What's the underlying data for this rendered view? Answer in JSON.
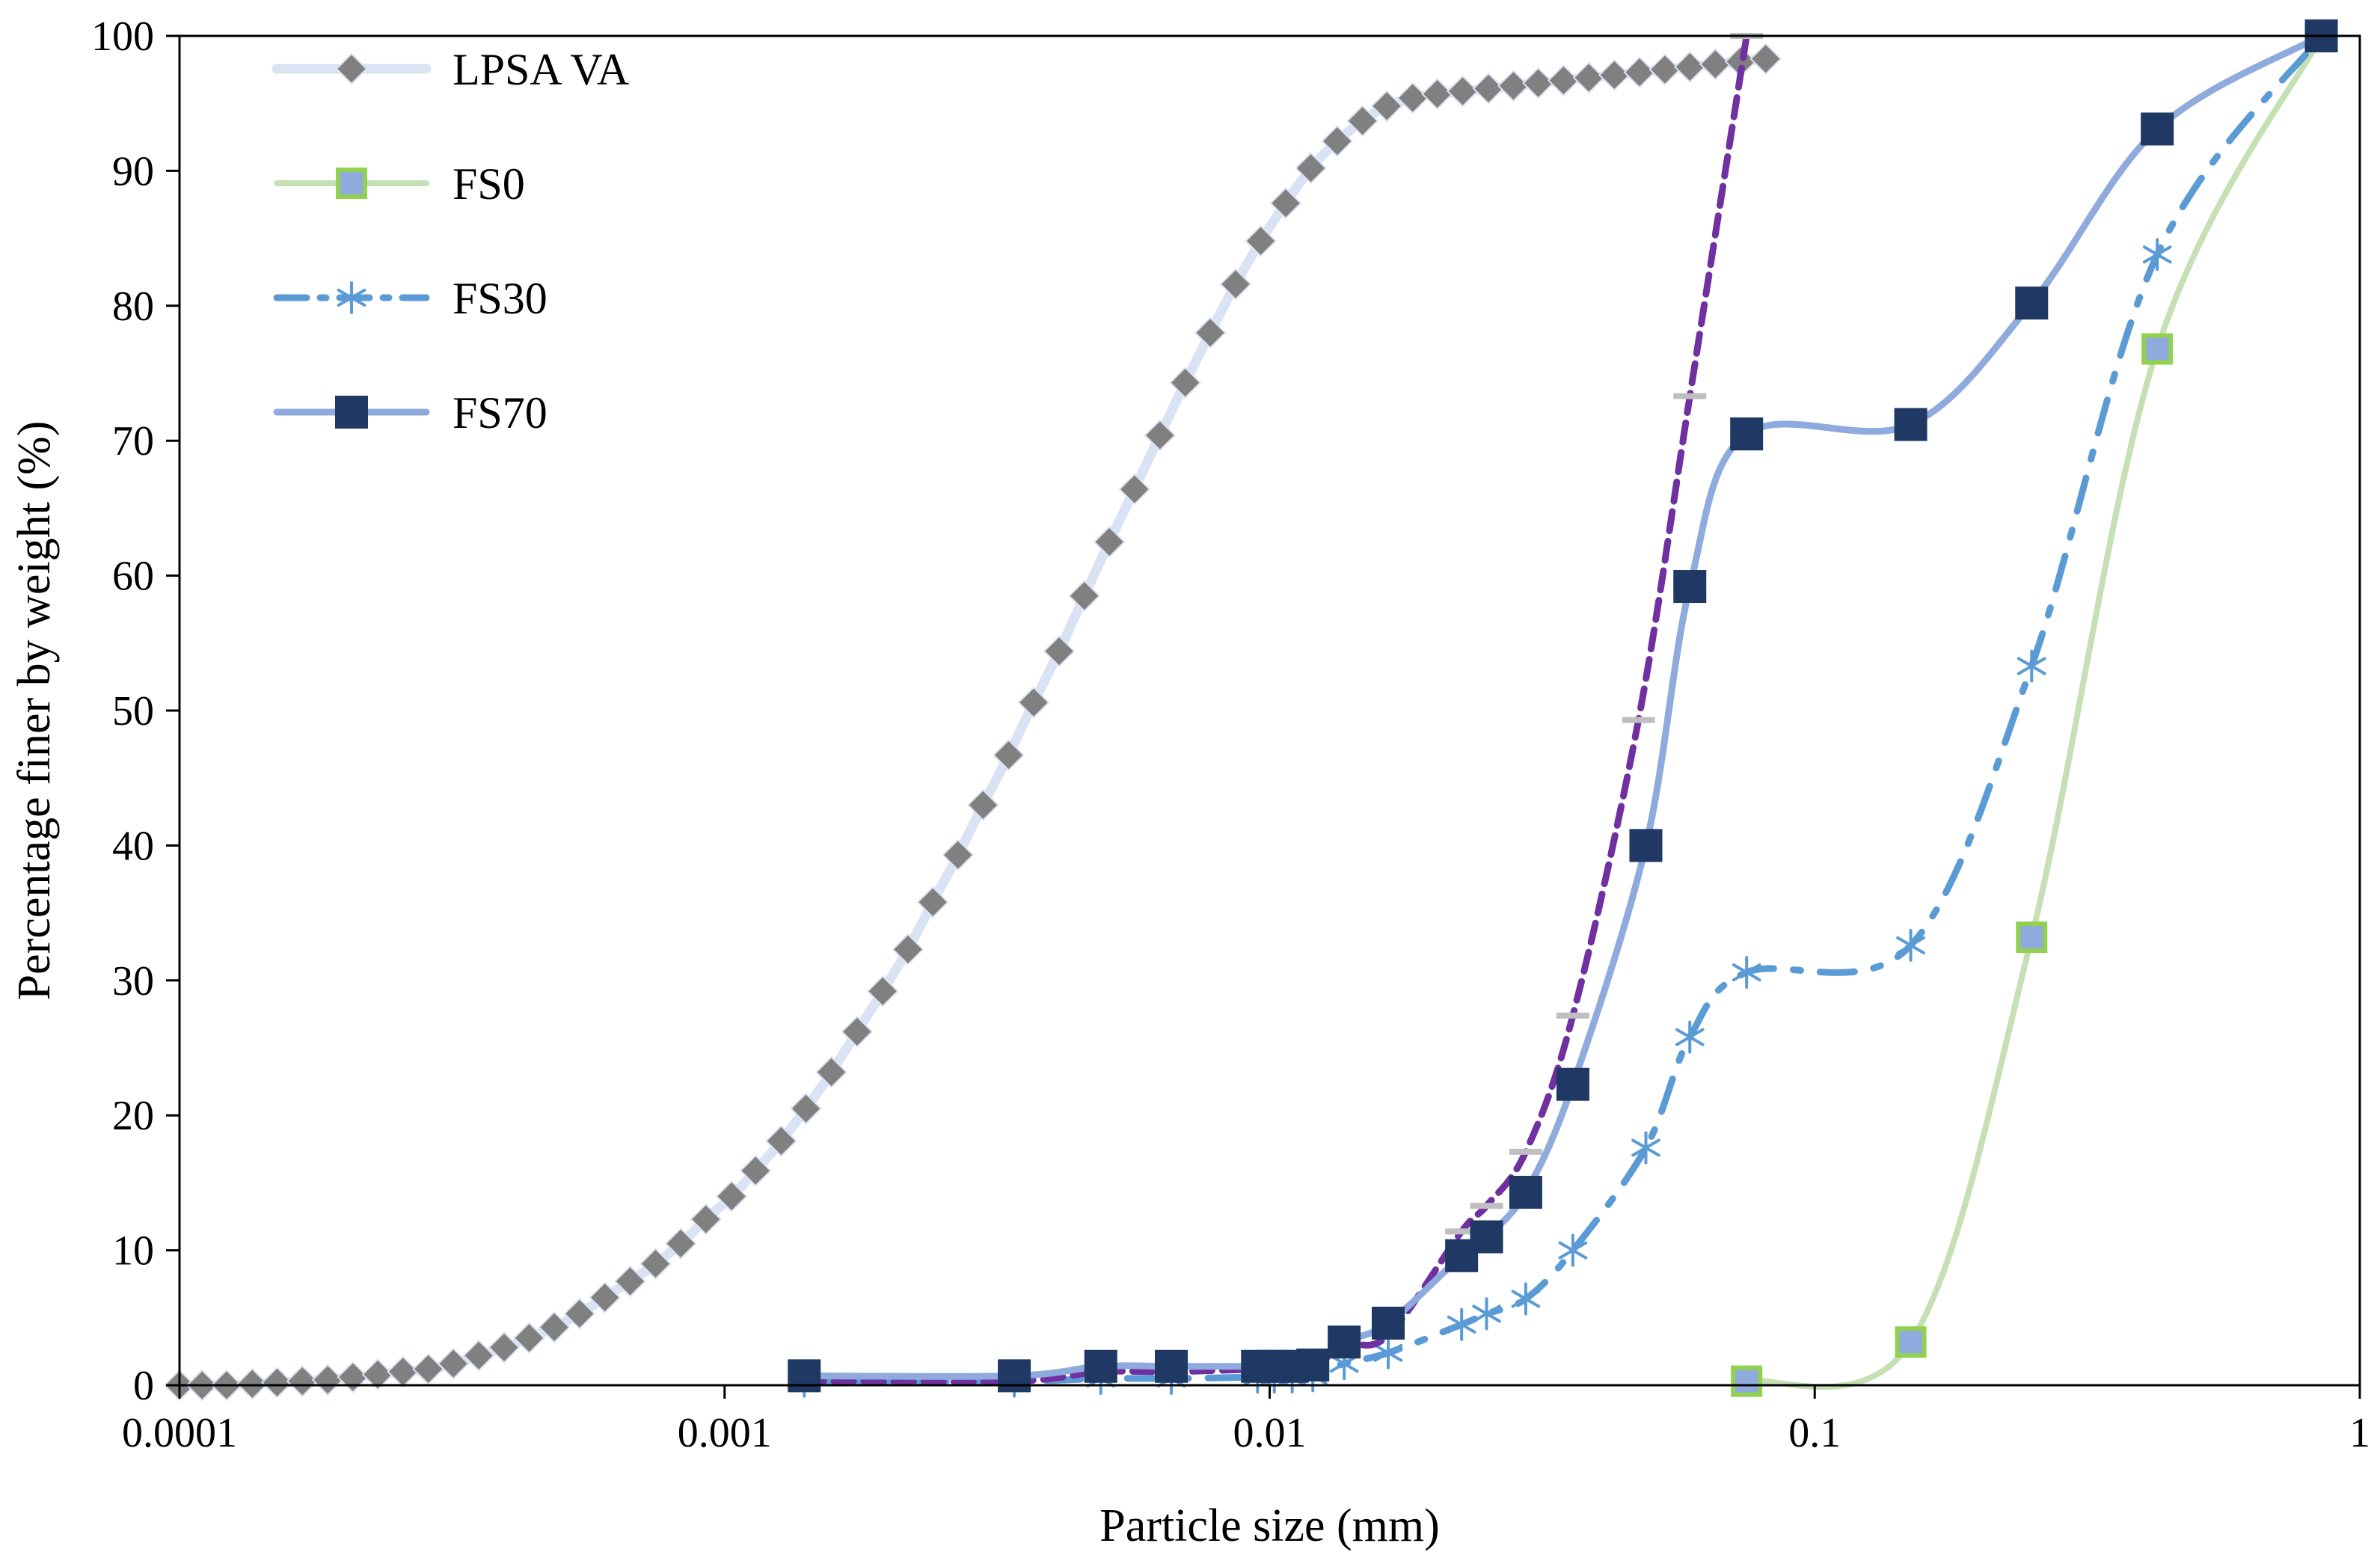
{
  "chart_data": {
    "type": "line",
    "xscale": "log",
    "xlabel": "Particle size (mm)",
    "ylabel": "Percentage finer by weight (%)",
    "xlim": [
      0.0001,
      1
    ],
    "ylim": [
      0,
      100
    ],
    "xticks": [
      0.0001,
      0.001,
      0.01,
      0.1,
      1
    ],
    "xtick_labels": [
      "0.0001",
      "0.001",
      "0.01",
      "0.1",
      "1"
    ],
    "yticks": [
      0,
      10,
      20,
      30,
      40,
      50,
      60,
      70,
      80,
      90,
      100
    ],
    "ytick_labels": [
      "0",
      "10",
      "20",
      "30",
      "40",
      "50",
      "60",
      "70",
      "80",
      "90",
      "100"
    ],
    "legend_position": "top-left",
    "series": [
      {
        "name": "LPSA VA",
        "line_color": "#dae3f3",
        "marker": "diamond",
        "marker_color": "#808080",
        "in_legend": true,
        "x": [
          0.0001,
          0.00011,
          0.000122,
          0.000136,
          0.000151,
          0.000168,
          0.000187,
          0.000208,
          0.000231,
          0.000257,
          0.000286,
          0.000318,
          0.000354,
          0.000394,
          0.000438,
          0.000487,
          0.000542,
          0.000603,
          0.000671,
          0.000747,
          0.000831,
          0.000924,
          0.00103,
          0.00114,
          0.00127,
          0.00141,
          0.00157,
          0.00175,
          0.00195,
          0.00217,
          0.00241,
          0.00268,
          0.00298,
          0.00332,
          0.00369,
          0.00411,
          0.00457,
          0.00508,
          0.00565,
          0.00629,
          0.007,
          0.00778,
          0.00866,
          0.00963,
          0.0107,
          0.0119,
          0.0133,
          0.0148,
          0.0164,
          0.0183,
          0.0203,
          0.0226,
          0.0252,
          0.028,
          0.0311,
          0.0346,
          0.0385,
          0.0429,
          0.0477,
          0.0531,
          0.059,
          0.0657,
          0.0731,
          0.0813
        ],
        "y": [
          0,
          0,
          0,
          0.1,
          0.2,
          0.3,
          0.4,
          0.6,
          0.8,
          1.0,
          1.2,
          1.6,
          2.2,
          2.8,
          3.5,
          4.3,
          5.3,
          6.5,
          7.7,
          9.0,
          10.5,
          12.3,
          14.0,
          15.9,
          18.1,
          20.5,
          23.2,
          26.2,
          29.2,
          32.3,
          35.8,
          39.3,
          43.0,
          46.7,
          50.6,
          54.4,
          58.5,
          62.5,
          66.4,
          70.4,
          74.3,
          78.0,
          81.6,
          84.8,
          87.6,
          90.2,
          92.2,
          93.7,
          94.8,
          95.4,
          95.7,
          95.9,
          96.1,
          96.3,
          96.5,
          96.7,
          96.9,
          97.1,
          97.3,
          97.5,
          97.7,
          97.9,
          98.1,
          98.3
        ]
      },
      {
        "name": "FS0",
        "line_color": "#c5e0b4",
        "marker": "square",
        "marker_color": "#8faadc",
        "marker_edge": "#92d050",
        "in_legend": true,
        "x": [
          0.075,
          0.15,
          0.25,
          0.425,
          0.85
        ],
        "y": [
          0.3,
          3.2,
          33.2,
          76.8,
          100
        ]
      },
      {
        "name": "FS30",
        "line_color": "#5b9bd5",
        "marker": "asterisk",
        "marker_color": "#5b9bd5",
        "dash": "dash-dot",
        "in_legend": true,
        "x": [
          0.0014,
          0.0034,
          0.0049,
          0.0066,
          0.0095,
          0.0102,
          0.011,
          0.012,
          0.0137,
          0.0165,
          0.0225,
          0.025,
          0.0295,
          0.036,
          0.049,
          0.059,
          0.075,
          0.15,
          0.25,
          0.425,
          0.85
        ],
        "y": [
          0.3,
          0.3,
          0.5,
          0.5,
          0.6,
          0.6,
          0.6,
          0.7,
          1.6,
          2.4,
          4.5,
          5.3,
          6.4,
          10.0,
          17.6,
          25.8,
          30.6,
          32.6,
          53.3,
          83.8,
          100
        ]
      },
      {
        "name": "FS70",
        "line_color": "#8faadc",
        "marker": "square",
        "marker_color": "#1f3864",
        "in_legend": true,
        "x": [
          0.0014,
          0.0034,
          0.0049,
          0.0066,
          0.0095,
          0.0102,
          0.011,
          0.012,
          0.0137,
          0.0165,
          0.0225,
          0.025,
          0.0295,
          0.036,
          0.049,
          0.059,
          0.075,
          0.15,
          0.25,
          0.425,
          0.85
        ],
        "y": [
          0.7,
          0.7,
          1.4,
          1.4,
          1.4,
          1.4,
          1.4,
          1.5,
          3.2,
          4.6,
          9.6,
          11.0,
          14.3,
          22.3,
          40.0,
          59.2,
          70.5,
          71.2,
          80.2,
          93.1,
          100
        ]
      },
      {
        "name": "",
        "line_color": "#7030a0",
        "marker": "hline",
        "marker_color": "#bfbfbf",
        "dash": "dashed",
        "in_legend": false,
        "x": [
          0.0014,
          0.0034,
          0.0049,
          0.0066,
          0.0095,
          0.0102,
          0.011,
          0.012,
          0.0137,
          0.0165,
          0.0225,
          0.025,
          0.0295,
          0.036,
          0.0475,
          0.059,
          0.075
        ],
        "y": [
          0.3,
          0.3,
          1.0,
          1.0,
          1.2,
          1.2,
          1.2,
          1.2,
          3.0,
          3.7,
          11.4,
          13.3,
          17.3,
          27.4,
          49.3,
          73.3,
          100
        ]
      }
    ]
  }
}
